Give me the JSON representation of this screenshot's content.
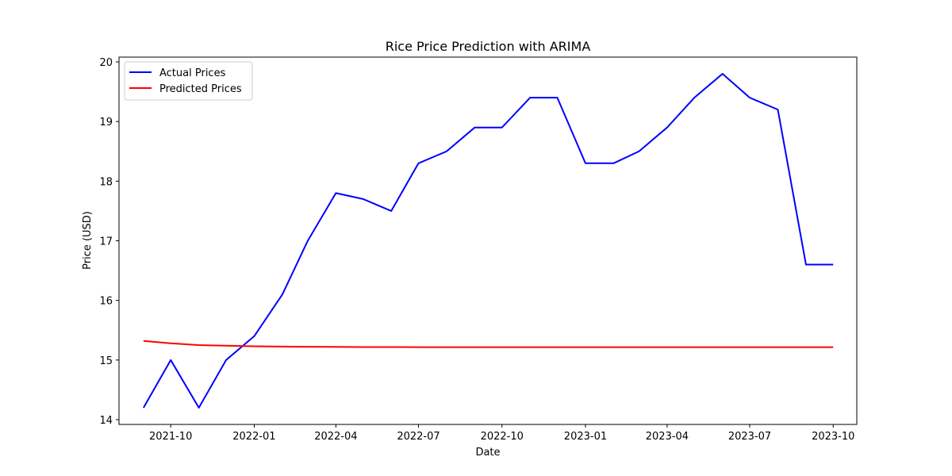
{
  "chart_data": {
    "type": "line",
    "title": "Rice Price Prediction with ARIMA",
    "xlabel": "Date",
    "ylabel": "Price (USD)",
    "x": [
      "2021-09-01",
      "2021-10-01",
      "2021-11-01",
      "2021-12-01",
      "2022-01-01",
      "2022-02-01",
      "2022-03-01",
      "2022-04-01",
      "2022-05-01",
      "2022-06-01",
      "2022-07-01",
      "2022-08-01",
      "2022-09-01",
      "2022-10-01",
      "2022-11-01",
      "2022-12-01",
      "2023-01-01",
      "2023-02-01",
      "2023-03-01",
      "2023-04-01",
      "2023-05-01",
      "2023-06-01",
      "2023-07-01",
      "2023-08-01",
      "2023-09-01",
      "2023-10-01"
    ],
    "series": [
      {
        "name": "Actual Prices",
        "color": "#0000ff",
        "values": [
          14.2,
          15.0,
          14.2,
          15.0,
          15.4,
          16.1,
          17.0,
          17.8,
          17.7,
          17.5,
          18.3,
          18.5,
          18.9,
          18.9,
          19.4,
          19.4,
          18.3,
          18.3,
          18.5,
          18.9,
          19.4,
          19.8,
          19.4,
          19.2,
          16.6,
          16.6
        ]
      },
      {
        "name": "Predicted Prices",
        "color": "#ff0000",
        "values": [
          15.32,
          15.28,
          15.25,
          15.24,
          15.23,
          15.225,
          15.222,
          15.22,
          15.218,
          15.217,
          15.216,
          15.216,
          15.215,
          15.215,
          15.215,
          15.215,
          15.215,
          15.215,
          15.215,
          15.215,
          15.215,
          15.215,
          15.215,
          15.215,
          15.215,
          15.215
        ]
      }
    ],
    "xticks": [
      "2021-10",
      "2022-01",
      "2022-04",
      "2022-07",
      "2022-10",
      "2023-01",
      "2023-04",
      "2023-07",
      "2023-10"
    ],
    "yticks": [
      14,
      15,
      16,
      17,
      18,
      19,
      20
    ],
    "ylim": [
      13.92,
      20.08
    ],
    "xlim": [
      "2021-08-05",
      "2023-10-27"
    ],
    "legend_position": "upper-left",
    "grid": false
  }
}
